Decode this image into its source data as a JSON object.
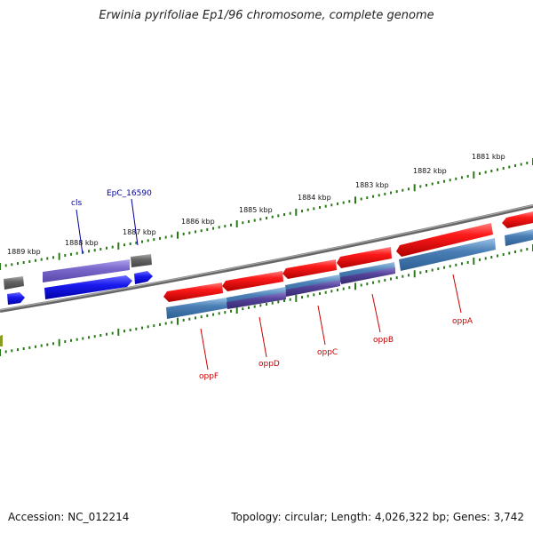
{
  "title": "Erwinia pyrifoliae Ep1/96 chromosome, complete genome",
  "footer": {
    "accession": "Accession: NC_012214",
    "summary": "Topology: circular; Length: 4,026,322 bp; Genes: 3,742"
  },
  "scale_labels": [
    "1889 kbp",
    "1888 kbp",
    "1887 kbp",
    "1886 kbp",
    "1885 kbp",
    "1884 kbp",
    "1883 kbp",
    "1882 kbp",
    "1881 kbp"
  ],
  "gene_labels": {
    "cls": "cls",
    "epc": "EpC_16590",
    "oppF": "oppF",
    "oppD": "oppD",
    "oppC": "oppC",
    "oppB": "oppB",
    "oppA": "oppA"
  },
  "colors": {
    "gene_red": "#ee1111",
    "cds_blue": "#4a7fb5",
    "cds_purple": "#55449a",
    "light_purple": "#7b68cc",
    "bright_blue": "#1a1aee",
    "gray_gene": "#666666",
    "backbone": "#777777",
    "tick_green": "#2a7a1a",
    "label_red": "#cc0000",
    "label_blue": "#000099"
  }
}
